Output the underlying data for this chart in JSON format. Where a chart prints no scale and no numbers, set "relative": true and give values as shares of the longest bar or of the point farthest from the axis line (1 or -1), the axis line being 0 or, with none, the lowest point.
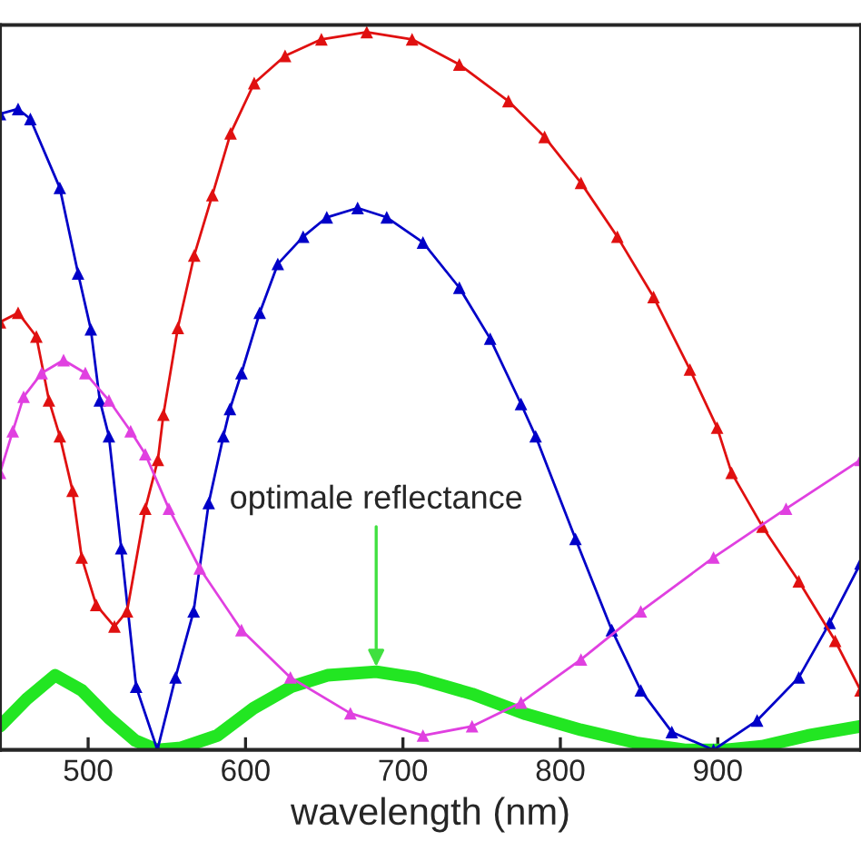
{
  "chart_data": {
    "type": "line",
    "relative": true,
    "xlabel": "wavelength (nm)",
    "xlim": [
      444,
      991
    ],
    "xticks": [
      500,
      600,
      700,
      800,
      900
    ],
    "grid": false,
    "line_style": "solid",
    "annotations": [
      {
        "text": "optimale reflectance",
        "x": 683,
        "y": 0.109
      }
    ],
    "series": [
      {
        "color": "#22e622",
        "marker": "none",
        "x": [
          444,
          461,
          479,
          496,
          513,
          530,
          544,
          559,
          582,
          605,
          629,
          652,
          683,
          709,
          744,
          778,
          813,
          848,
          879,
          905,
          928,
          957,
          991
        ],
        "values": [
          0.033,
          0.071,
          0.104,
          0.083,
          0.045,
          0.013,
          0,
          0.003,
          0.02,
          0.058,
          0.088,
          0.104,
          0.109,
          0.1,
          0.078,
          0.05,
          0.028,
          0.01,
          0,
          0,
          0.005,
          0.02,
          0.033
        ]
      },
      {
        "color": "#0000c8",
        "marker": "triangle",
        "x": [
          444,
          455.5,
          463.3,
          482,
          493.6,
          501.7,
          507.4,
          513.2,
          521,
          530.5,
          544,
          555.5,
          567,
          576.6,
          585.9,
          590.1,
          597.4,
          609,
          620.5,
          636.6,
          651.6,
          671.2,
          689.7,
          712.7,
          735.8,
          755.4,
          775,
          784.3,
          809.6,
          832.7,
          851.1,
          870.8,
          897.3,
          925,
          951.5,
          971.1,
          990.7
        ],
        "values": [
          0.886,
          0.893,
          0.879,
          0.783,
          0.664,
          0.586,
          0.487,
          0.437,
          0.281,
          0.088,
          0,
          0.101,
          0.193,
          0.344,
          0.437,
          0.475,
          0.525,
          0.609,
          0.677,
          0.715,
          0.742,
          0.755,
          0.742,
          0.707,
          0.644,
          0.573,
          0.482,
          0.437,
          0.294,
          0.167,
          0.083,
          0.025,
          0,
          0.041,
          0.101,
          0.177,
          0.26
        ]
      },
      {
        "color": "#e01010",
        "marker": "triangle",
        "x": [
          444,
          455.5,
          467.1,
          475.1,
          482,
          490.1,
          495.9,
          505.1,
          516.7,
          524.7,
          536.3,
          544.3,
          547.8,
          557,
          567.4,
          578.9,
          590.5,
          605.5,
          625.1,
          648.2,
          677,
          705.8,
          735.8,
          767,
          790,
          813.1,
          836.2,
          859.2,
          882.3,
          899.6,
          908.8,
          928.4,
          951.5,
          974.6,
          990.7
        ],
        "values": [
          0.596,
          0.609,
          0.576,
          0.487,
          0.437,
          0.361,
          0.268,
          0.202,
          0.172,
          0.193,
          0.336,
          0.404,
          0.467,
          0.588,
          0.689,
          0.773,
          0.859,
          0.929,
          0.967,
          0.99,
          1,
          0.99,
          0.955,
          0.904,
          0.854,
          0.79,
          0.715,
          0.631,
          0.53,
          0.449,
          0.386,
          0.311,
          0.235,
          0.152,
          0.083
        ]
      },
      {
        "color": "#e040e0",
        "marker": "triangle",
        "x": [
          444,
          452.1,
          459,
          470.5,
          484.4,
          498.2,
          513.2,
          527,
          536.3,
          551.3,
          570.9,
          597.4,
          628.5,
          666.6,
          712.7,
          743.9,
          775,
          813.1,
          851.1,
          897.3,
          943.4,
          990.7
        ],
        "values": [
          0.386,
          0.444,
          0.492,
          0.525,
          0.543,
          0.525,
          0.487,
          0.444,
          0.412,
          0.336,
          0.253,
          0.167,
          0.101,
          0.051,
          0.02,
          0.033,
          0.066,
          0.126,
          0.193,
          0.268,
          0.336,
          0.404
        ]
      }
    ]
  }
}
